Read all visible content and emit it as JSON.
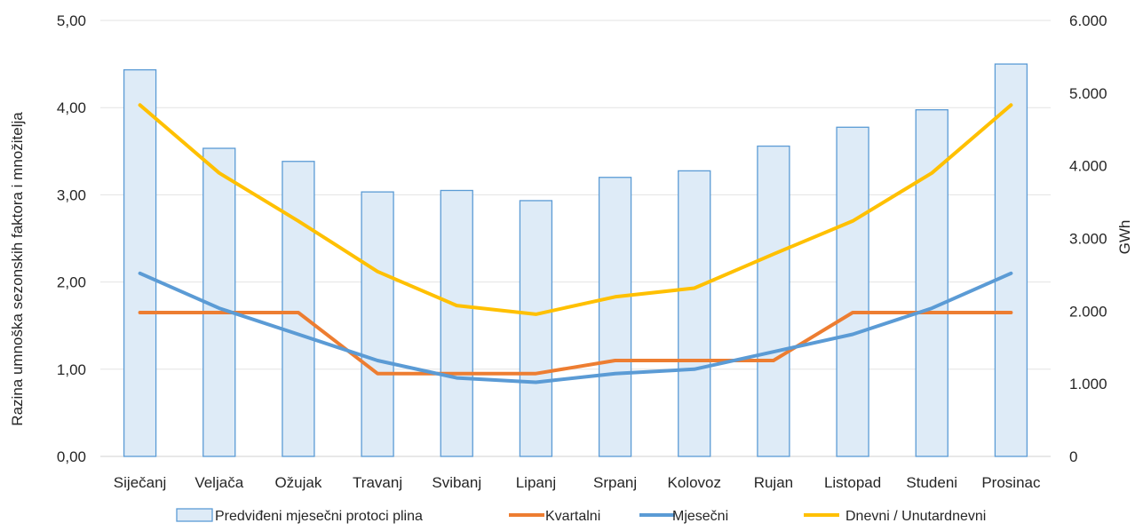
{
  "chart_data": {
    "type": "bar+line",
    "categories": [
      "Siječanj",
      "Veljača",
      "Ožujak",
      "Travanj",
      "Svibanj",
      "Lipanj",
      "Srpanj",
      "Kolovoz",
      "Rujan",
      "Listopad",
      "Studeni",
      "Prosinac"
    ],
    "bar_series": {
      "name": "Predviđeni mjesečni protoci plina",
      "axis": "right",
      "color": "#DEEBF7",
      "border": "#5B9BD5",
      "values": [
        5320,
        4240,
        4060,
        3640,
        3660,
        3520,
        3840,
        3930,
        4270,
        4530,
        4770,
        5400
      ]
    },
    "line_series": [
      {
        "name": "Kvartalni",
        "axis": "left",
        "color": "#ED7D31",
        "values": [
          1.65,
          1.65,
          1.65,
          0.95,
          0.95,
          0.95,
          1.1,
          1.1,
          1.1,
          1.65,
          1.65,
          1.65
        ]
      },
      {
        "name": "Mjesečni",
        "axis": "left",
        "color": "#5B9BD5",
        "values": [
          2.1,
          1.7,
          1.4,
          1.1,
          0.9,
          0.85,
          0.95,
          1.0,
          1.2,
          1.4,
          1.7,
          2.1
        ]
      },
      {
        "name": "Dnevni / Unutardnevni",
        "axis": "left",
        "color": "#FFC000",
        "values": [
          4.03,
          3.25,
          2.7,
          2.12,
          1.73,
          1.63,
          1.83,
          1.93,
          2.32,
          2.7,
          3.25,
          4.03
        ]
      }
    ],
    "y_left": {
      "label": "Razina umnoška sezonskih faktora i množitelja",
      "range": [
        0,
        5
      ],
      "ticks": [
        "0,00",
        "1,00",
        "2,00",
        "3,00",
        "4,00",
        "5,00"
      ]
    },
    "y_right": {
      "label": "GWh",
      "range": [
        0,
        6000
      ],
      "ticks": [
        "0",
        "1.000",
        "2.000",
        "3.000",
        "4.000",
        "5.000",
        "6.000"
      ]
    },
    "grid": true,
    "legend_position": "bottom"
  }
}
